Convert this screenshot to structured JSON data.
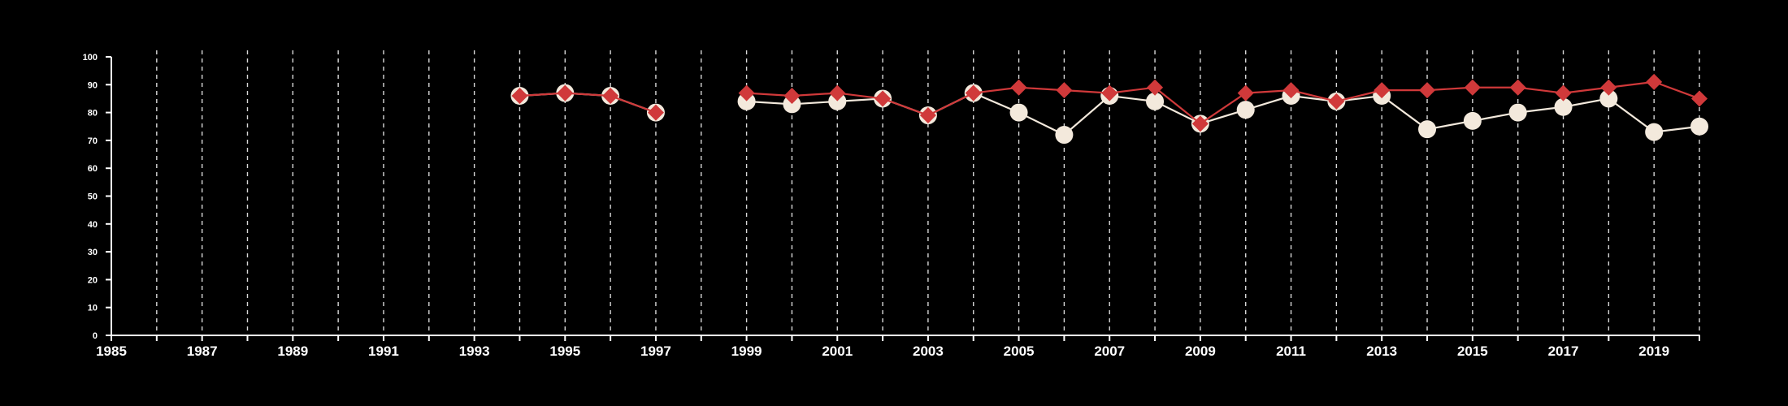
{
  "chart_data": {
    "type": "line",
    "title": "",
    "xlabel": "",
    "ylabel": "",
    "xlim": [
      1985,
      2020
    ],
    "ylim": [
      0,
      100
    ],
    "y_ticks": [
      0,
      10,
      20,
      30,
      40,
      50,
      60,
      70,
      80,
      90,
      100
    ],
    "x_tick_labels": [
      1985,
      1987,
      1989,
      1991,
      1993,
      1995,
      1997,
      1999,
      2001,
      2003,
      2005,
      2007,
      2009,
      2011,
      2013,
      2015,
      2017,
      2019
    ],
    "grid": "vertical dashed lines at every year",
    "background": "#000000",
    "series": [
      {
        "color": "#f3e9dc",
        "marker": "circle",
        "segments": [
          [
            [
              1994,
              86
            ],
            [
              1995,
              87
            ],
            [
              1996,
              86
            ],
            [
              1997,
              80
            ]
          ],
          [
            [
              1999,
              84
            ],
            [
              2000,
              83
            ],
            [
              2001,
              84
            ],
            [
              2002,
              85
            ],
            [
              2003,
              79
            ],
            [
              2004,
              87
            ],
            [
              2005,
              80
            ],
            [
              2006,
              72
            ],
            [
              2007,
              86
            ],
            [
              2008,
              84
            ],
            [
              2009,
              76
            ],
            [
              2010,
              81
            ],
            [
              2011,
              86
            ],
            [
              2012,
              84
            ],
            [
              2013,
              86
            ],
            [
              2014,
              74
            ],
            [
              2015,
              77
            ],
            [
              2016,
              80
            ],
            [
              2017,
              82
            ],
            [
              2018,
              85
            ],
            [
              2019,
              73
            ],
            [
              2020,
              75
            ]
          ]
        ]
      },
      {
        "color": "#d0393a",
        "marker": "diamond",
        "segments": [
          [
            [
              1994,
              86
            ],
            [
              1995,
              87
            ],
            [
              1996,
              86
            ],
            [
              1997,
              80
            ]
          ],
          [
            [
              1999,
              87
            ],
            [
              2000,
              86
            ],
            [
              2001,
              87
            ],
            [
              2002,
              85
            ],
            [
              2003,
              79
            ],
            [
              2004,
              87
            ],
            [
              2005,
              89
            ],
            [
              2006,
              88
            ],
            [
              2007,
              87
            ],
            [
              2008,
              89
            ],
            [
              2009,
              76
            ],
            [
              2010,
              87
            ],
            [
              2011,
              88
            ],
            [
              2012,
              84
            ],
            [
              2013,
              88
            ],
            [
              2014,
              88
            ],
            [
              2015,
              89
            ],
            [
              2016,
              89
            ],
            [
              2017,
              87
            ],
            [
              2018,
              89
            ],
            [
              2019,
              91
            ],
            [
              2020,
              85
            ]
          ]
        ]
      }
    ]
  }
}
